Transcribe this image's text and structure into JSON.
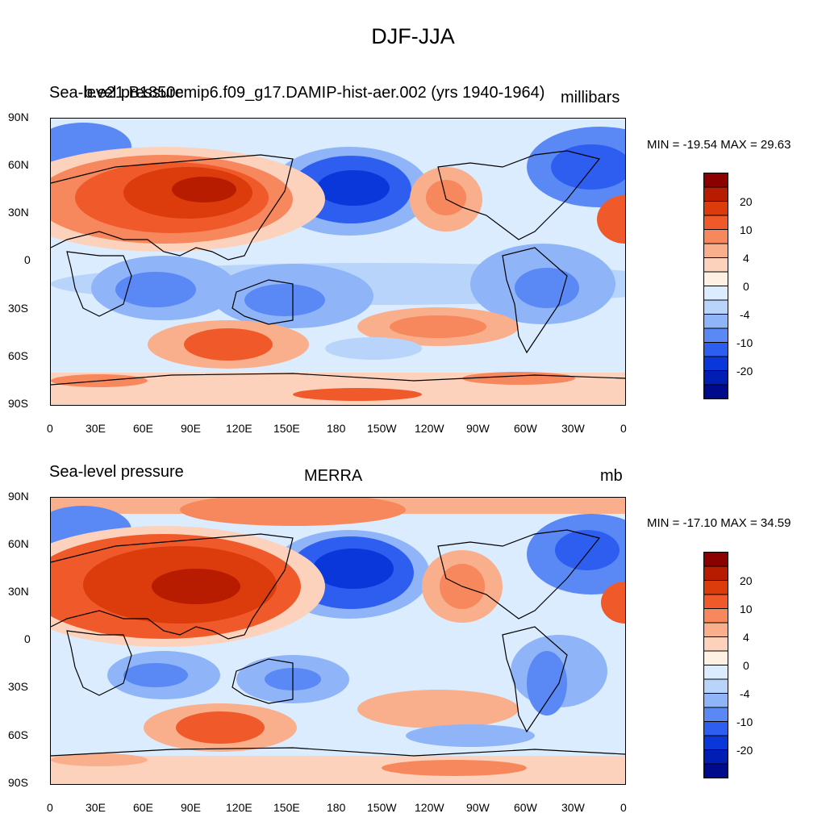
{
  "figure": {
    "title": "DJF-JJA"
  },
  "panels": [
    {
      "left_title": "Sea-level pressure",
      "center_title": "b.e21.B1850cmip6.f09_g17.DAMIP-hist-aer.002 (yrs 1940-1964)",
      "right_title": "millibars",
      "min_max": "MIN = -19.54 MAX =  29.63"
    },
    {
      "left_title": "Sea-level pressure",
      "center_title": "MERRA",
      "right_title": "mb",
      "min_max": "MIN = -17.10 MAX =  34.59"
    }
  ],
  "axes": {
    "lat_labels": [
      "90N",
      "60N",
      "30N",
      "0",
      "30S",
      "60S",
      "90S"
    ],
    "lon_labels": [
      "0",
      "30E",
      "60E",
      "90E",
      "120E",
      "150E",
      "180",
      "150W",
      "120W",
      "90W",
      "60W",
      "30W",
      "0"
    ]
  },
  "colorbar": {
    "levels": [
      "20",
      "10",
      "4",
      "0",
      "-4",
      "-10",
      "-20"
    ],
    "colors": [
      "#8b0000",
      "#b81c00",
      "#dc3c0c",
      "#f05a2a",
      "#f7875c",
      "#f9ae8c",
      "#fdd2bc",
      "#fff0e4",
      "#dcecff",
      "#b8d4fa",
      "#8fb4f7",
      "#5a89f5",
      "#2d5ef0",
      "#0a37d9",
      "#001db4",
      "#000b8c"
    ]
  }
}
